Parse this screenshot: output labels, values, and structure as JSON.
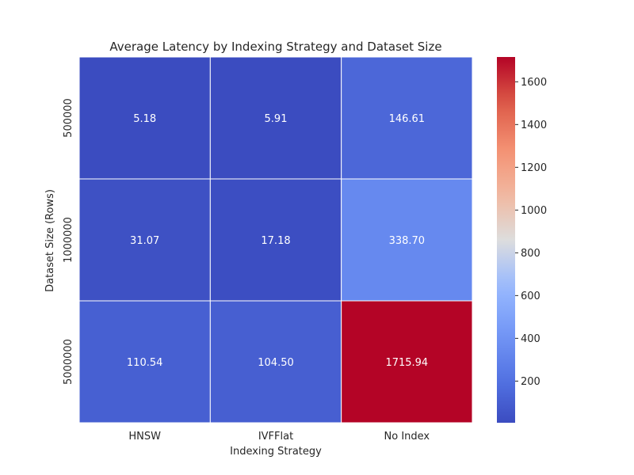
{
  "chart_data": {
    "type": "heatmap",
    "title": "Average Latency by Indexing Strategy and Dataset Size",
    "xlabel": "Indexing Strategy",
    "ylabel": "Dataset Size (Rows)",
    "x_categories": [
      "HNSW",
      "IVFFlat",
      "No Index"
    ],
    "y_categories": [
      "500000",
      "1000000",
      "5000000"
    ],
    "values": [
      [
        5.18,
        5.91,
        146.61
      ],
      [
        31.07,
        17.18,
        338.7
      ],
      [
        110.54,
        104.5,
        1715.94
      ]
    ],
    "value_labels": [
      [
        "5.18",
        "5.91",
        "146.61"
      ],
      [
        "31.07",
        "17.18",
        "338.70"
      ],
      [
        "110.54",
        "104.50",
        "1715.94"
      ]
    ],
    "colormap": "coolwarm",
    "colorbar": {
      "vmin": 5.18,
      "vmax": 1715.94,
      "ticks": [
        200,
        400,
        600,
        800,
        1000,
        1200,
        1400,
        1600
      ]
    }
  }
}
